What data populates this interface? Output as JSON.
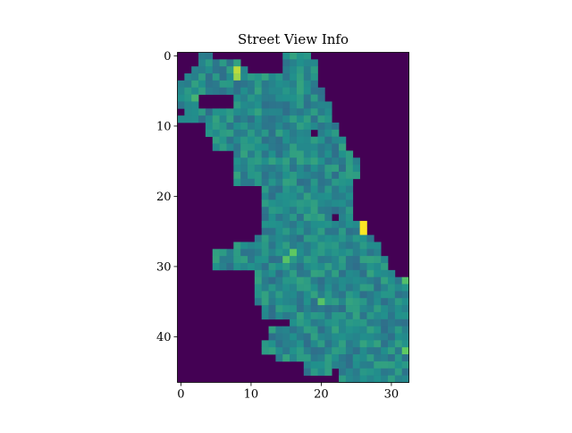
{
  "chart_data": {
    "type": "heatmap",
    "title": "Street View Info",
    "xlabel": "",
    "ylabel": "",
    "colormap": "viridis",
    "colors": {
      "low": "#440154",
      "mid": "#21918c",
      "high": "#fde725"
    },
    "x_ticks": [
      "0",
      "10",
      "20",
      "30"
    ],
    "y_ticks": [
      "0",
      "10",
      "20",
      "30",
      "40"
    ],
    "grid": false,
    "shape": [
      47,
      33
    ],
    "row_spans": [
      [
        [
          3,
          4
        ],
        [
          15,
          18
        ]
      ],
      [
        [
          3,
          8
        ],
        [
          15,
          19
        ]
      ],
      [
        [
          2,
          9
        ],
        [
          15,
          19
        ]
      ],
      [
        [
          1,
          19
        ]
      ],
      [
        [
          0,
          19
        ]
      ],
      [
        [
          0,
          20
        ]
      ],
      [
        [
          0,
          2
        ],
        [
          8,
          20
        ]
      ],
      [
        [
          0,
          2
        ],
        [
          8,
          21
        ]
      ],
      [
        [
          1,
          21
        ]
      ],
      [
        [
          0,
          21
        ]
      ],
      [
        [
          4,
          22
        ]
      ],
      [
        [
          4,
          22
        ]
      ],
      [
        [
          5,
          23
        ]
      ],
      [
        [
          5,
          23
        ]
      ],
      [
        [
          8,
          24
        ]
      ],
      [
        [
          8,
          25
        ]
      ],
      [
        [
          8,
          25
        ]
      ],
      [
        [
          8,
          25
        ]
      ],
      [
        [
          8,
          24
        ]
      ],
      [
        [
          12,
          24
        ]
      ],
      [
        [
          12,
          24
        ]
      ],
      [
        [
          12,
          24
        ]
      ],
      [
        [
          12,
          24
        ]
      ],
      [
        [
          12,
          24
        ]
      ],
      [
        [
          12,
          26
        ]
      ],
      [
        [
          12,
          26
        ]
      ],
      [
        [
          11,
          27
        ]
      ],
      [
        [
          8,
          28
        ]
      ],
      [
        [
          5,
          28
        ]
      ],
      [
        [
          5,
          29
        ]
      ],
      [
        [
          5,
          29
        ]
      ],
      [
        [
          11,
          30
        ]
      ],
      [
        [
          11,
          32
        ]
      ],
      [
        [
          11,
          32
        ]
      ],
      [
        [
          11,
          32
        ]
      ],
      [
        [
          11,
          32
        ]
      ],
      [
        [
          12,
          32
        ]
      ],
      [
        [
          12,
          32
        ]
      ],
      [
        [
          16,
          32
        ]
      ],
      [
        [
          13,
          32
        ]
      ],
      [
        [
          13,
          32
        ]
      ],
      [
        [
          12,
          32
        ]
      ],
      [
        [
          12,
          32
        ]
      ],
      [
        [
          14,
          32
        ]
      ],
      [
        [
          18,
          32
        ]
      ],
      [
        [
          18,
          32
        ]
      ],
      [
        [
          23,
          32
        ]
      ]
    ],
    "highlights": [
      {
        "row": 2,
        "col": 8,
        "level": 0.9
      },
      {
        "row": 3,
        "col": 8,
        "level": 0.85
      },
      {
        "row": 24,
        "col": 26,
        "level": 1.0
      },
      {
        "row": 25,
        "col": 26,
        "level": 1.0
      },
      {
        "row": 28,
        "col": 16,
        "level": 0.75
      },
      {
        "row": 29,
        "col": 15,
        "level": 0.72
      },
      {
        "row": 35,
        "col": 20,
        "level": 0.72
      },
      {
        "row": 42,
        "col": 32,
        "level": 0.75
      },
      {
        "row": 32,
        "col": 32,
        "level": 0.7
      },
      {
        "row": 6,
        "col": 2,
        "level": 0.65
      }
    ],
    "notches": [
      {
        "row": 11,
        "col": 19
      },
      {
        "row": 23,
        "col": 22
      },
      {
        "row": 45,
        "col": 22
      }
    ]
  }
}
